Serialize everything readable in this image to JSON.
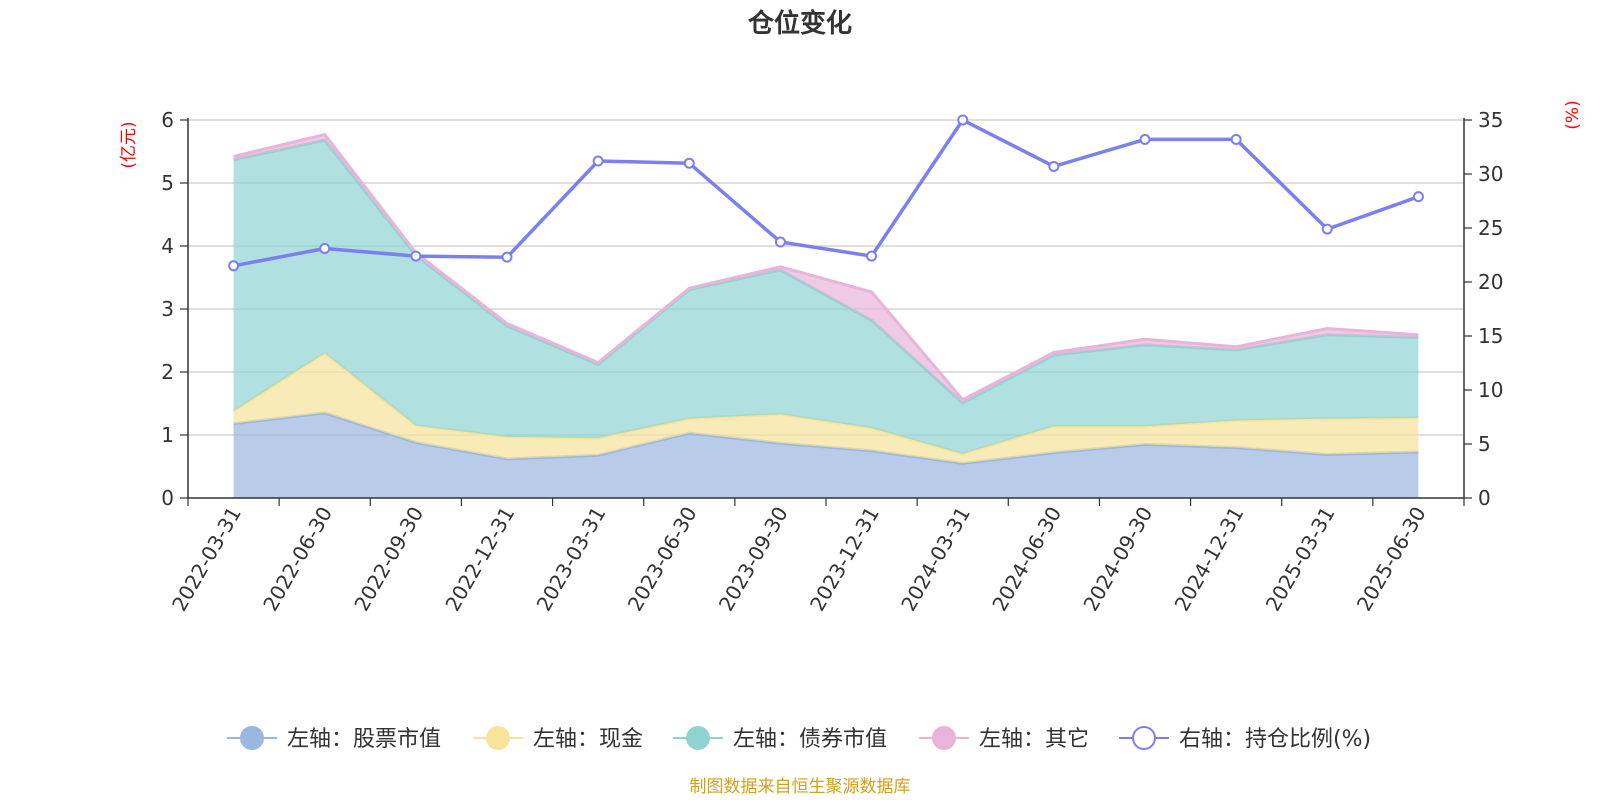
{
  "title": "仓位变化",
  "source": "制图数据来自恒生聚源数据库",
  "colors": {
    "stock": "#9ab7e0",
    "cash": "#f7e39a",
    "bond": "#8fd3d1",
    "other": "#e8b4d8",
    "ratio": "#7b7ff0",
    "grid": "#cccccc",
    "axis": "#333333",
    "unit": "#ff0000",
    "source": "#d4a017"
  },
  "chart_data": {
    "type": "area",
    "stacked": true,
    "title": "仓位变化",
    "categories": [
      "2022-03-31",
      "2022-06-30",
      "2022-09-30",
      "2022-12-31",
      "2023-03-31",
      "2023-06-30",
      "2023-09-30",
      "2023-12-31",
      "2024-03-31",
      "2024-06-30",
      "2024-09-30",
      "2024-12-31",
      "2025-03-31",
      "2025-06-30"
    ],
    "y_left": {
      "label": "(亿元)",
      "lim": [
        0,
        6
      ],
      "ticks": [
        0,
        1,
        2,
        3,
        4,
        5,
        6
      ]
    },
    "y_right": {
      "label": "(%)",
      "lim": [
        0,
        35
      ],
      "ticks": [
        0,
        5,
        10,
        15,
        20,
        25,
        30,
        35
      ]
    },
    "grid": true,
    "legend_position": "bottom",
    "series": [
      {
        "name": "左轴：股票市值",
        "axis": "left",
        "type": "area",
        "color_key": "stock",
        "values": [
          1.18,
          1.35,
          0.88,
          0.62,
          0.68,
          1.03,
          0.87,
          0.75,
          0.55,
          0.72,
          0.85,
          0.8,
          0.69,
          0.73
        ]
      },
      {
        "name": "左轴：现金",
        "axis": "left",
        "type": "area",
        "color_key": "cash",
        "values": [
          0.2,
          0.95,
          0.27,
          0.35,
          0.27,
          0.23,
          0.46,
          0.36,
          0.15,
          0.42,
          0.29,
          0.43,
          0.57,
          0.54
        ]
      },
      {
        "name": "左轴：债券市值",
        "axis": "left",
        "type": "area",
        "color_key": "bond",
        "values": [
          3.99,
          3.38,
          2.7,
          1.76,
          1.17,
          2.05,
          2.29,
          1.71,
          0.81,
          1.13,
          1.29,
          1.12,
          1.33,
          1.28
        ]
      },
      {
        "name": "左轴：其它",
        "axis": "left",
        "type": "area",
        "color_key": "other",
        "values": [
          0.05,
          0.09,
          0.04,
          0.04,
          0.03,
          0.02,
          0.05,
          0.45,
          0.05,
          0.04,
          0.09,
          0.05,
          0.1,
          0.04
        ]
      },
      {
        "name": "右轴：持仓比例(%)",
        "axis": "right",
        "type": "line",
        "color_key": "ratio",
        "values": [
          21.5,
          23.1,
          22.4,
          22.3,
          31.2,
          31.0,
          23.7,
          22.4,
          35.0,
          30.7,
          33.2,
          33.2,
          24.9,
          27.9
        ]
      }
    ]
  }
}
